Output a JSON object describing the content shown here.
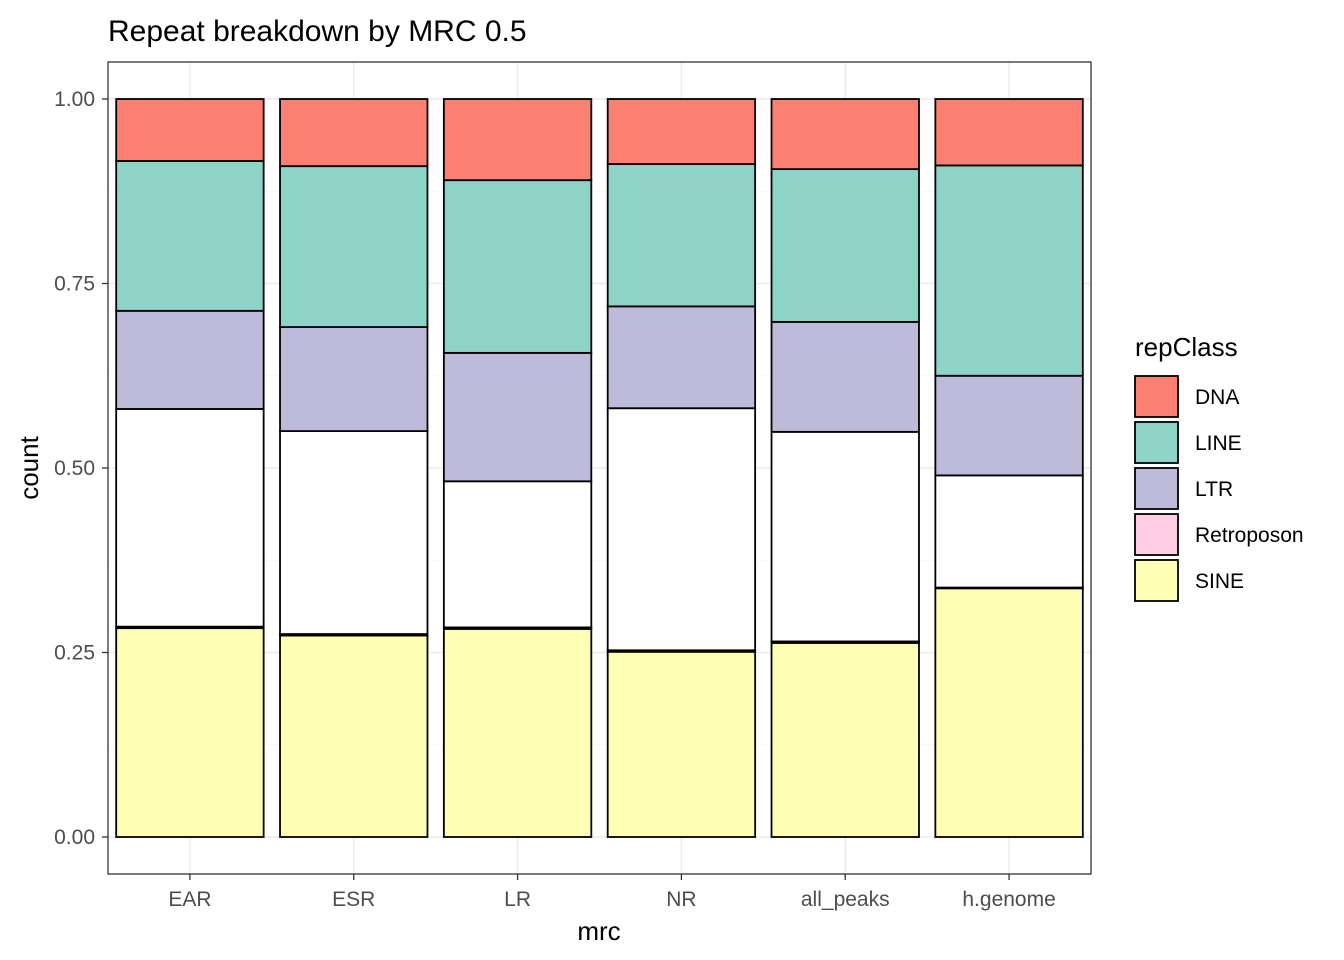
{
  "chart_data": {
    "type": "bar",
    "stacked": true,
    "title": "Repeat breakdown by MRC 0.5",
    "xlabel": "mrc",
    "ylabel": "count",
    "ylim": [
      0,
      1.0
    ],
    "yticks": [
      "0.00",
      "0.25",
      "0.50",
      "0.75",
      "1.00"
    ],
    "ytick_values": [
      0,
      0.25,
      0.5,
      0.75,
      1.0
    ],
    "grid": true,
    "categories": [
      "EAR",
      "ESR",
      "LR",
      "NR",
      "all_peaks",
      "h.genome"
    ],
    "legend": {
      "title": "repClass",
      "placement": "right",
      "entries": [
        "DNA",
        "LINE",
        "LTR",
        "Retroposon",
        "SINE"
      ]
    },
    "stack_order_bottom_to_top": [
      "SINE",
      "Retroposon",
      "Unlabeled",
      "LTR",
      "LINE",
      "DNA"
    ],
    "series": [
      {
        "name": "SINE",
        "color": "#FFFFB3",
        "values": [
          0.283,
          0.273,
          0.282,
          0.251,
          0.263,
          0.337
        ]
      },
      {
        "name": "Retroposon",
        "color": "#FCCDE5",
        "values": [
          0.002,
          0.002,
          0.002,
          0.002,
          0.002,
          0.001
        ]
      },
      {
        "name": "",
        "color": "#FFFFFF",
        "values": [
          0.295,
          0.275,
          0.198,
          0.328,
          0.284,
          0.152
        ]
      },
      {
        "name": "LTR",
        "color": "#BEBADA",
        "values": [
          0.133,
          0.141,
          0.174,
          0.138,
          0.149,
          0.135
        ]
      },
      {
        "name": "LINE",
        "color": "#8DD3C7",
        "values": [
          0.203,
          0.218,
          0.234,
          0.193,
          0.207,
          0.285
        ]
      },
      {
        "name": "DNA",
        "color": "#FB8072",
        "values": [
          0.084,
          0.091,
          0.11,
          0.088,
          0.095,
          0.09
        ]
      }
    ]
  }
}
